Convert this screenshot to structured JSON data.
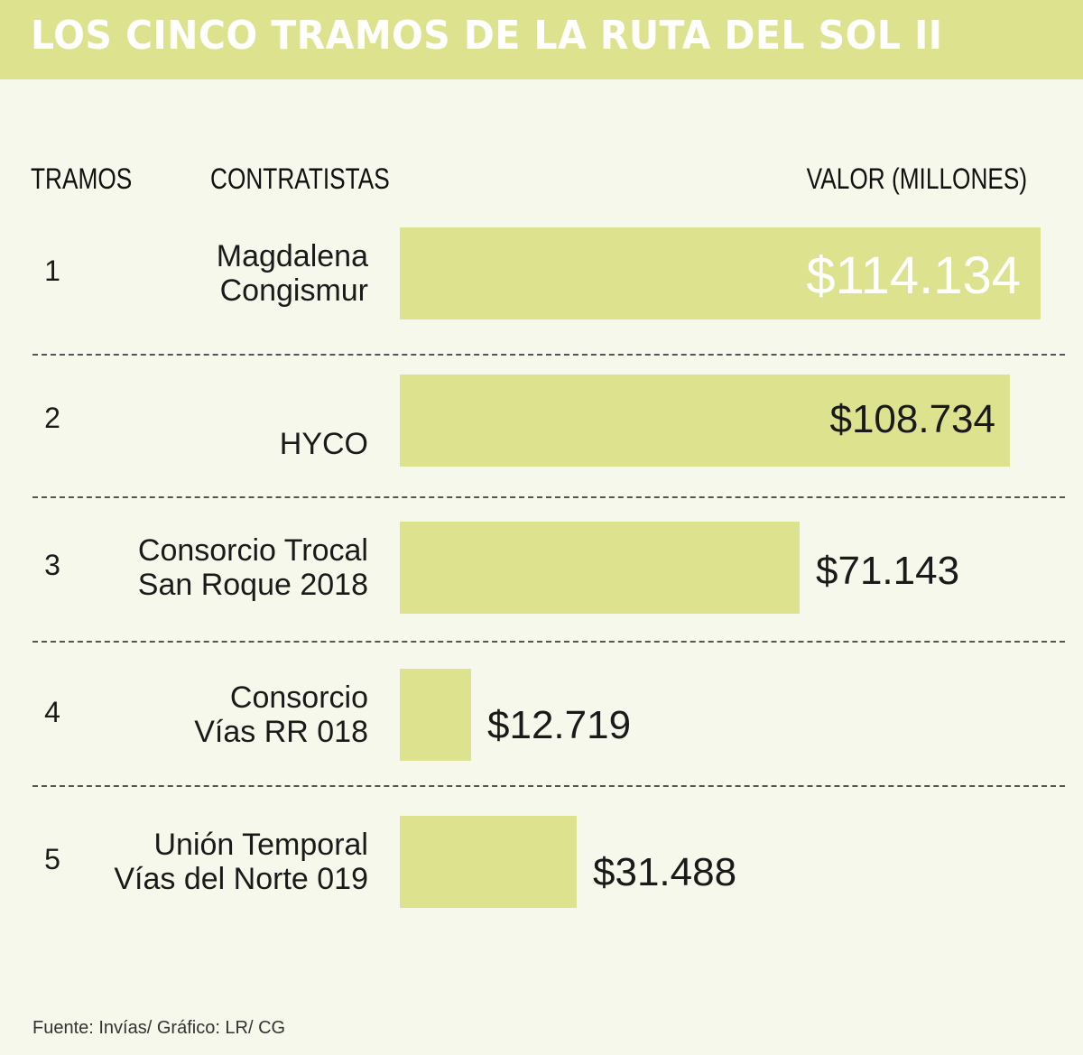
{
  "header": {
    "title": "LOS CINCO TRAMOS DE LA RUTA DEL SOL II"
  },
  "columns": {
    "tramos": "TRAMOS",
    "contratistas": "CONTRATISTAS",
    "valor": "VALOR (MILLONES)"
  },
  "rows": [
    {
      "tramo": "1",
      "contractor_line1": "Magdalena",
      "contractor_line2": "Congismur",
      "value_label": "$114.134"
    },
    {
      "tramo": "2",
      "contractor_line1": "",
      "contractor_line2": "HYCO",
      "value_label": "$108.734"
    },
    {
      "tramo": "3",
      "contractor_line1": "Consorcio Trocal",
      "contractor_line2": "San Roque 2018",
      "value_label": "$71.143"
    },
    {
      "tramo": "4",
      "contractor_line1": "Consorcio",
      "contractor_line2": "Vías RR 018",
      "value_label": "$12.719"
    },
    {
      "tramo": "5",
      "contractor_line1": "Unión Temporal",
      "contractor_line2": "Vías del Norte 019",
      "value_label": "$31.488"
    }
  ],
  "source": "Fuente: Invías/ Gráfico: LR/ CG",
  "colors": {
    "accent": "#dde28f",
    "background": "#f5f8ea"
  },
  "chart_data": {
    "type": "bar",
    "orientation": "horizontal",
    "title": "LOS CINCO TRAMOS DE LA RUTA DEL SOL II",
    "categories": [
      "Magdalena Congismur",
      "HYCO",
      "Consorcio Trocal San Roque 2018",
      "Consorcio Vías RR 018",
      "Unión Temporal Vías del Norte 019"
    ],
    "values": [
      114134,
      108734,
      71143,
      12719,
      31488
    ],
    "xlim": [
      0,
      114134
    ],
    "grid": false,
    "legend": "none"
  }
}
